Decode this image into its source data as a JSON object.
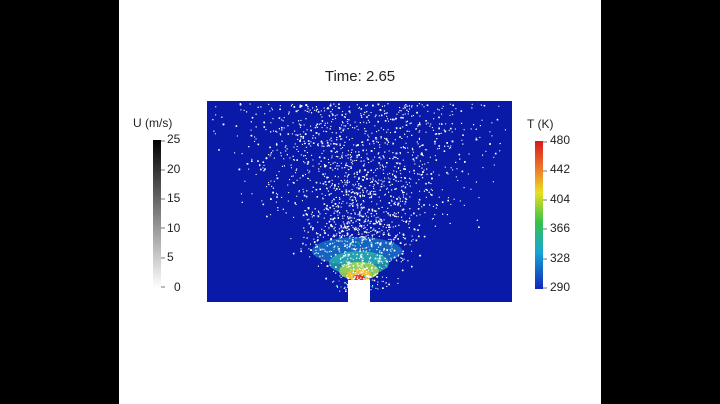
{
  "title": "Time: 2.65",
  "velocity_legend": {
    "label": "U (m/s)",
    "ticks": [
      "25",
      "20",
      "15",
      "10",
      "5",
      "0"
    ]
  },
  "temperature_legend": {
    "label": "T (K)",
    "ticks": [
      "480",
      "442",
      "404",
      "366",
      "328",
      "290"
    ]
  },
  "colors": {
    "domain_background": "#0a1aa8",
    "letterbox": "#000000",
    "canvas": "#ffffff"
  }
}
